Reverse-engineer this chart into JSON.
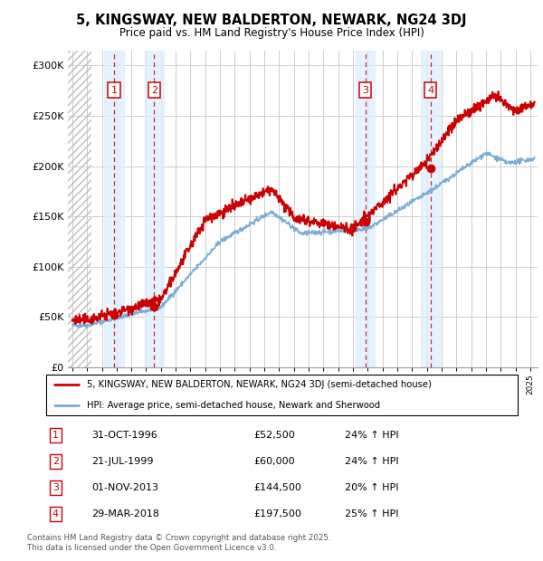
{
  "title1": "5, KINGSWAY, NEW BALDERTON, NEWARK, NG24 3DJ",
  "title2": "Price paid vs. HM Land Registry's House Price Index (HPI)",
  "yticks": [
    0,
    50000,
    100000,
    150000,
    200000,
    250000,
    300000
  ],
  "ytick_labels": [
    "£0",
    "£50K",
    "£100K",
    "£150K",
    "£200K",
    "£250K",
    "£300K"
  ],
  "xlim_start": 1993.7,
  "xlim_end": 2025.5,
  "ylim": [
    0,
    315000
  ],
  "sale_dates": [
    1996.83,
    1999.55,
    2013.83,
    2018.25
  ],
  "sale_prices": [
    52500,
    60000,
    144500,
    197500
  ],
  "sale_labels": [
    "1",
    "2",
    "3",
    "4"
  ],
  "sale_date_strings": [
    "31-OCT-1996",
    "21-JUL-1999",
    "01-NOV-2013",
    "29-MAR-2018"
  ],
  "sale_price_strings": [
    "£52,500",
    "£60,000",
    "£144,500",
    "£197,500"
  ],
  "sale_hpi_strings": [
    "24% ↑ HPI",
    "24% ↑ HPI",
    "20% ↑ HPI",
    "25% ↑ HPI"
  ],
  "legend_line1": "5, KINGSWAY, NEW BALDERTON, NEWARK, NG24 3DJ (semi-detached house)",
  "legend_line2": "HPI: Average price, semi-detached house, Newark and Sherwood",
  "footnote1": "Contains HM Land Registry data © Crown copyright and database right 2025.",
  "footnote2": "This data is licensed under the Open Government Licence v3.0.",
  "line_color_red": "#cc0000",
  "line_color_blue": "#7aaed4",
  "sale_band_color": "#ddeeff",
  "grid_color": "#cccccc",
  "hatch_region_end": 1995.3
}
